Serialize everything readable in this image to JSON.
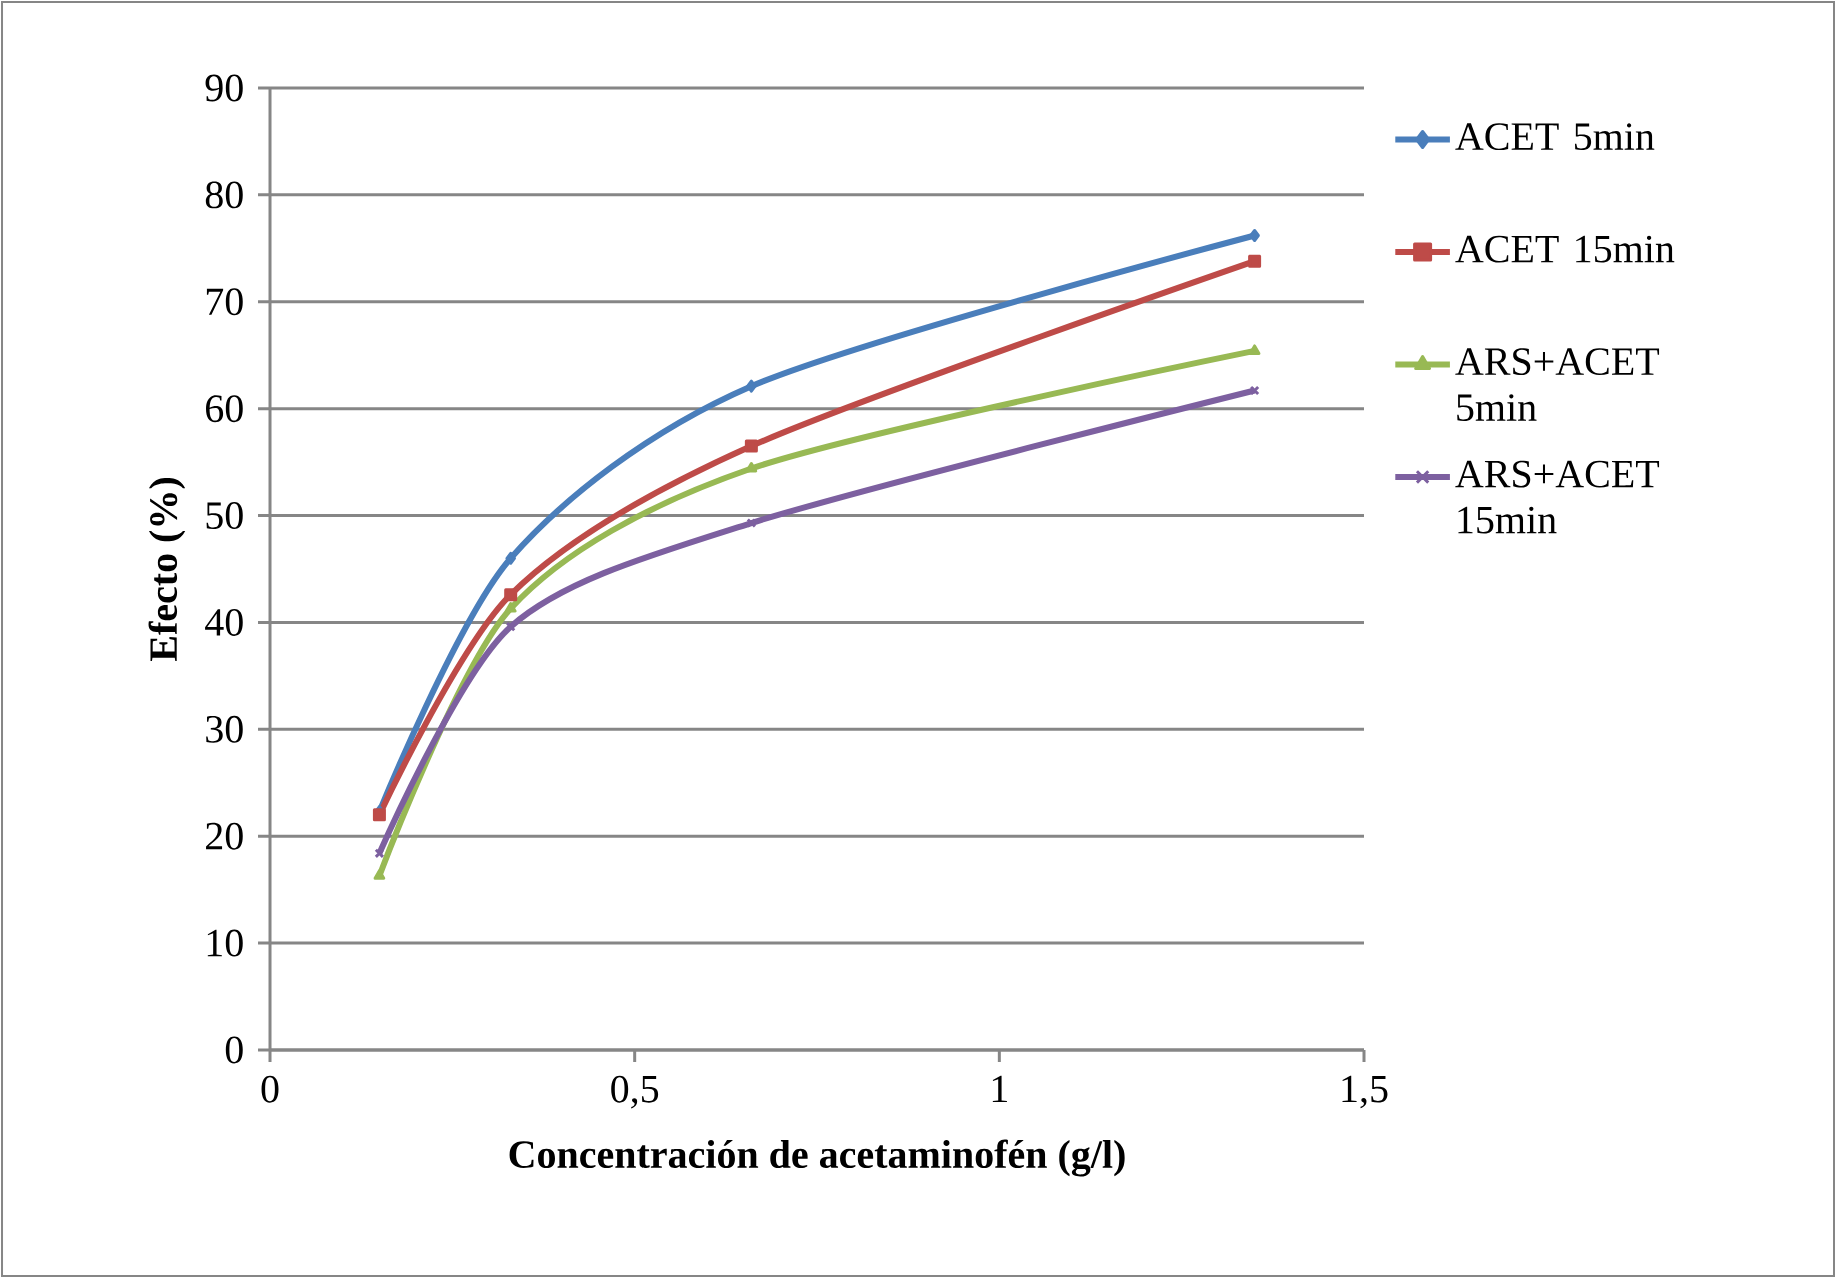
{
  "chart_data": {
    "type": "line",
    "xlabel": "Concentración de acetaminofén (g/l)",
    "ylabel": "Efecto (%)",
    "x": [
      0.15,
      0.33,
      0.66,
      1.35
    ],
    "series": [
      {
        "name": "ACET 5min",
        "color": "#4a7ebb",
        "marker": "diamond",
        "values": [
          22.3,
          46,
          62.1,
          76.2
        ]
      },
      {
        "name": "ACET 15min",
        "color": "#be4b48",
        "marker": "square",
        "values": [
          22,
          42.6,
          56.5,
          73.8
        ]
      },
      {
        "name": "ARS+ACET 5min",
        "color": "#98b954",
        "marker": "triangle",
        "values": [
          16.3,
          41.3,
          54.4,
          65.4
        ]
      },
      {
        "name": "ARS+ACET 15min",
        "color": "#7d60a0",
        "marker": "cross",
        "values": [
          18.4,
          39.6,
          49.3,
          61.7
        ]
      }
    ],
    "xlim": [
      0,
      1.5
    ],
    "xticks": [
      0,
      {
        "value": 0.5,
        "label": "0,5"
      },
      1,
      {
        "value": 1.5,
        "label": "1,5"
      }
    ],
    "ylim": [
      0,
      90
    ],
    "yticks": [
      0,
      10,
      20,
      30,
      40,
      50,
      60,
      70,
      80,
      90
    ],
    "grid": "y",
    "legend": "right",
    "line_style": "solid"
  }
}
